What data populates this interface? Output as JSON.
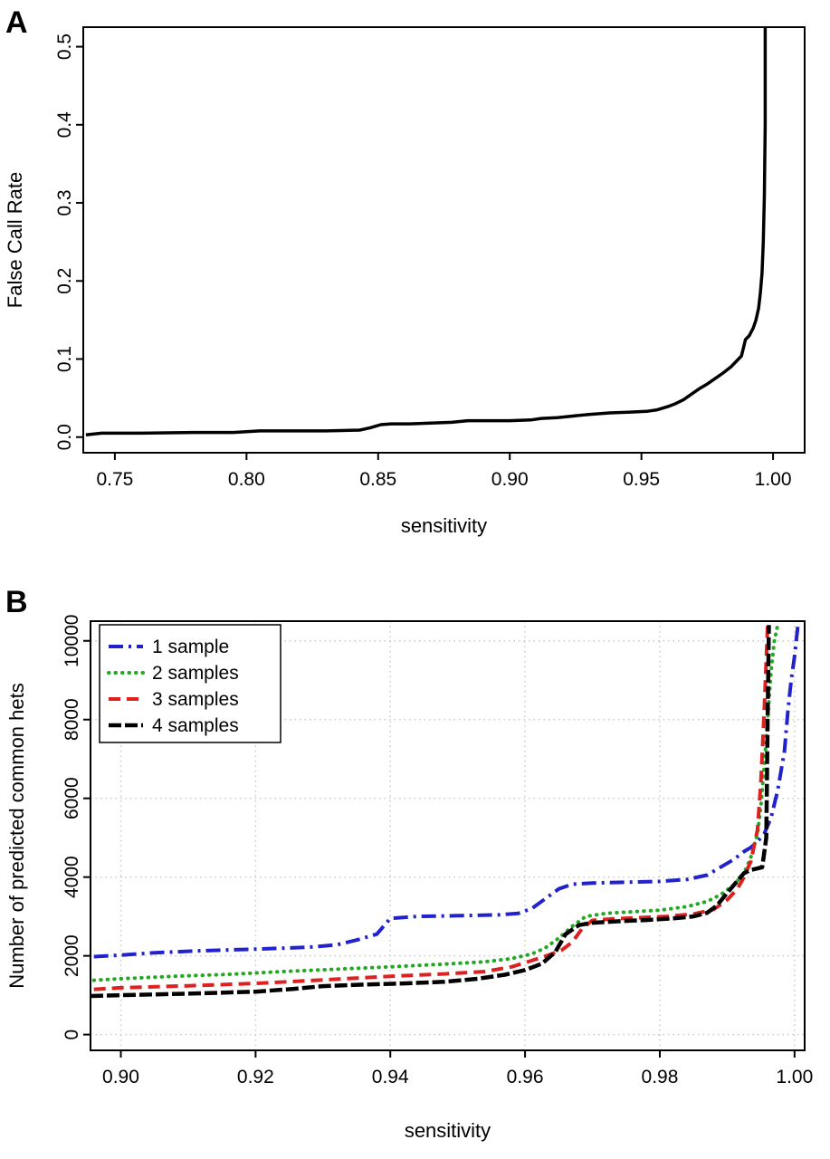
{
  "panels": [
    {
      "label": "A"
    },
    {
      "label": "B"
    }
  ],
  "chart_data": [
    {
      "type": "line",
      "title": "",
      "xlabel": "sensitivity",
      "ylabel": "False Call Rate",
      "xlim": [
        0.738,
        1.012
      ],
      "ylim": [
        -0.02,
        0.525
      ],
      "xticks": [
        "0.75",
        "0.80",
        "0.85",
        "0.90",
        "0.95",
        "1.00"
      ],
      "yticks": [
        "0.0",
        "0.1",
        "0.2",
        "0.3",
        "0.4",
        "0.5"
      ],
      "grid": false,
      "grid_color": "#c8c8c8",
      "legend": {
        "visible": false,
        "position": "none"
      },
      "series": [
        {
          "name": "false call rate",
          "color": "#000000",
          "linetype": "solid",
          "width": 3.5,
          "x": [
            0.739,
            0.745,
            0.76,
            0.78,
            0.795,
            0.805,
            0.81,
            0.83,
            0.843,
            0.847,
            0.851,
            0.855,
            0.862,
            0.87,
            0.878,
            0.884,
            0.89,
            0.9,
            0.908,
            0.912,
            0.918,
            0.924,
            0.93,
            0.938,
            0.945,
            0.952,
            0.956,
            0.96,
            0.963,
            0.966,
            0.969,
            0.972,
            0.975,
            0.978,
            0.981,
            0.984,
            0.986,
            0.988,
            0.9895,
            0.991,
            0.9925,
            0.9935,
            0.9945,
            0.9952,
            0.9958,
            0.9963,
            0.9967,
            0.997,
            0.997
          ],
          "y": [
            0.003,
            0.005,
            0.005,
            0.006,
            0.006,
            0.008,
            0.008,
            0.008,
            0.009,
            0.012,
            0.016,
            0.017,
            0.017,
            0.018,
            0.019,
            0.021,
            0.021,
            0.021,
            0.022,
            0.024,
            0.025,
            0.027,
            0.029,
            0.031,
            0.032,
            0.033,
            0.035,
            0.039,
            0.043,
            0.048,
            0.055,
            0.062,
            0.068,
            0.075,
            0.082,
            0.09,
            0.097,
            0.104,
            0.125,
            0.13,
            0.14,
            0.15,
            0.165,
            0.185,
            0.21,
            0.25,
            0.31,
            0.4,
            0.53
          ]
        }
      ]
    },
    {
      "type": "line",
      "title": "",
      "xlabel": "sensitivity",
      "ylabel": "Number of predicted common hets",
      "xlim": [
        0.8955,
        1.0015
      ],
      "ylim": [
        -400,
        10500
      ],
      "xticks": [
        "0.90",
        "0.92",
        "0.94",
        "0.96",
        "0.98",
        "1.00"
      ],
      "yticks": [
        "0",
        "2000",
        "4000",
        "6000",
        "8000",
        "10000"
      ],
      "grid": true,
      "grid_color": "#c8c8c8",
      "legend": {
        "visible": true,
        "position": "top-left"
      },
      "series": [
        {
          "name": "1 sample",
          "color": "#2222cc",
          "linetype": "dashdot",
          "width": 4,
          "x": [
            0.896,
            0.9,
            0.905,
            0.912,
            0.92,
            0.928,
            0.932,
            0.935,
            0.938,
            0.94,
            0.944,
            0.95,
            0.956,
            0.959,
            0.961,
            0.963,
            0.965,
            0.967,
            0.97,
            0.975,
            0.98,
            0.984,
            0.987,
            0.989,
            0.991,
            0.9925,
            0.9935,
            0.9945,
            0.9955,
            0.9965,
            0.9975,
            0.9985,
            0.999,
            0.9995,
            1.0,
            1.0005
          ],
          "y": [
            1980,
            2020,
            2080,
            2130,
            2170,
            2220,
            2280,
            2400,
            2550,
            2950,
            3000,
            3020,
            3040,
            3080,
            3200,
            3450,
            3700,
            3820,
            3850,
            3870,
            3890,
            3940,
            4050,
            4250,
            4450,
            4650,
            4750,
            4900,
            5100,
            5500,
            6200,
            7200,
            8200,
            9000,
            9600,
            10400
          ]
        },
        {
          "name": "2 samples",
          "color": "#22a822",
          "linetype": "dotted",
          "width": 4,
          "x": [
            0.896,
            0.9,
            0.908,
            0.916,
            0.924,
            0.932,
            0.94,
            0.948,
            0.954,
            0.958,
            0.961,
            0.963,
            0.965,
            0.967,
            0.969,
            0.972,
            0.976,
            0.98,
            0.984,
            0.987,
            0.989,
            0.991,
            0.9925,
            0.9935,
            0.9945,
            0.995,
            0.9955,
            0.996,
            0.9965,
            0.997,
            0.9975
          ],
          "y": [
            1380,
            1420,
            1480,
            1530,
            1600,
            1660,
            1720,
            1790,
            1850,
            1930,
            2050,
            2200,
            2450,
            2750,
            3000,
            3080,
            3120,
            3160,
            3250,
            3380,
            3550,
            3800,
            4100,
            4500,
            5100,
            5800,
            6800,
            8000,
            9200,
            10000,
            10400
          ]
        },
        {
          "name": "3 samples",
          "color": "#dd2020",
          "linetype": "dashed",
          "width": 4,
          "x": [
            0.896,
            0.9,
            0.91,
            0.92,
            0.93,
            0.94,
            0.948,
            0.954,
            0.958,
            0.961,
            0.9635,
            0.9655,
            0.967,
            0.9685,
            0.97,
            0.973,
            0.977,
            0.981,
            0.985,
            0.988,
            0.99,
            0.9915,
            0.9925,
            0.9935,
            0.9945,
            0.995,
            0.9955,
            0.996
          ],
          "y": [
            1150,
            1190,
            1240,
            1300,
            1390,
            1480,
            1540,
            1600,
            1720,
            1880,
            2020,
            2150,
            2350,
            2700,
            2900,
            2940,
            2970,
            3000,
            3060,
            3180,
            3420,
            3700,
            4000,
            4400,
            5200,
            6400,
            8200,
            10400
          ]
        },
        {
          "name": "4 samples",
          "color": "#000000",
          "linetype": "twodash",
          "width": 4.5,
          "x": [
            0.8955,
            0.9,
            0.91,
            0.92,
            0.9255,
            0.93,
            0.936,
            0.942,
            0.948,
            0.953,
            0.957,
            0.96,
            0.9625,
            0.9645,
            0.966,
            0.968,
            0.97,
            0.974,
            0.978,
            0.982,
            0.985,
            0.987,
            0.9885,
            0.99,
            0.9915,
            0.9925,
            0.9935,
            0.9945,
            0.9952,
            0.9958,
            0.996,
            0.9962
          ],
          "y": [
            980,
            1000,
            1040,
            1090,
            1160,
            1230,
            1270,
            1300,
            1340,
            1420,
            1520,
            1640,
            1800,
            2100,
            2550,
            2780,
            2840,
            2880,
            2910,
            2950,
            3000,
            3090,
            3280,
            3600,
            3900,
            4100,
            4180,
            4220,
            4250,
            5000,
            8000,
            10400
          ]
        }
      ]
    }
  ]
}
